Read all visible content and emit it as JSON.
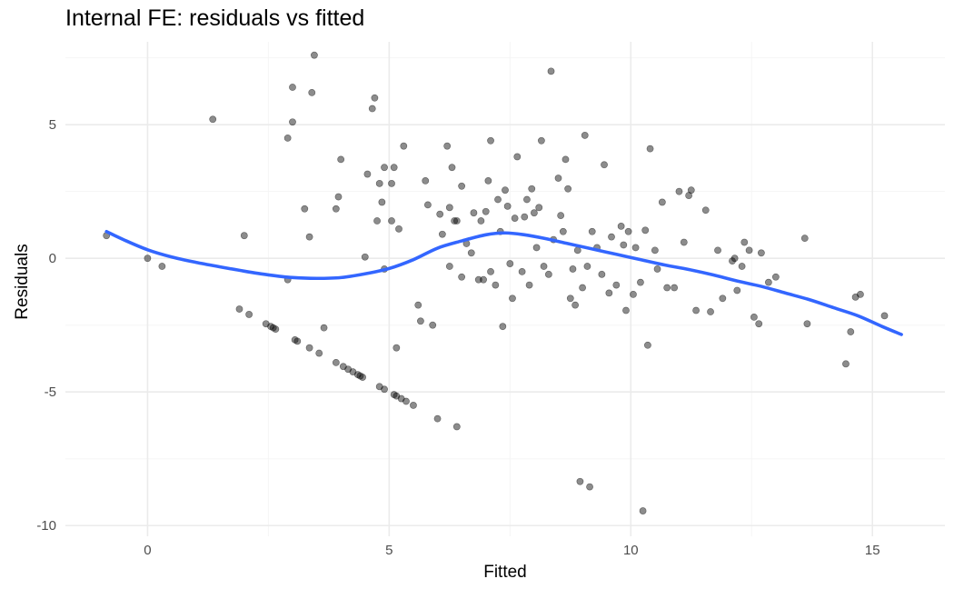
{
  "chart_data": {
    "type": "scatter",
    "title": "Internal FE: residuals vs fitted",
    "xlabel": "Fitted",
    "ylabel": "Residuals",
    "xlim": [
      -1.7,
      16.5
    ],
    "ylim": [
      -10.4,
      8.1
    ],
    "x_ticks": [
      0,
      5,
      10,
      15
    ],
    "y_ticks": [
      -10,
      -5,
      0,
      5
    ],
    "grid": true,
    "colors": {
      "points": "#000000",
      "smooth": "#3366ff",
      "grid_major": "#ebebeb",
      "grid_minor": "#f5f5f5"
    },
    "series": [
      {
        "kind": "points",
        "points": [
          [
            -0.85,
            0.85
          ],
          [
            0.0,
            0.0
          ],
          [
            0.3,
            -0.3
          ],
          [
            1.35,
            5.2
          ],
          [
            1.9,
            -1.9
          ],
          [
            2.0,
            0.85
          ],
          [
            2.1,
            -2.1
          ],
          [
            2.45,
            -2.45
          ],
          [
            2.55,
            -2.55
          ],
          [
            2.6,
            -2.6
          ],
          [
            2.65,
            -2.65
          ],
          [
            2.9,
            -0.8
          ],
          [
            2.9,
            4.5
          ],
          [
            3.0,
            6.4
          ],
          [
            3.0,
            5.1
          ],
          [
            3.05,
            -3.05
          ],
          [
            3.1,
            -3.1
          ],
          [
            3.25,
            1.85
          ],
          [
            3.35,
            0.8
          ],
          [
            3.35,
            -3.35
          ],
          [
            3.4,
            6.2
          ],
          [
            3.45,
            7.6
          ],
          [
            3.55,
            -3.55
          ],
          [
            3.65,
            -2.6
          ],
          [
            3.9,
            1.85
          ],
          [
            3.9,
            -3.9
          ],
          [
            3.95,
            2.3
          ],
          [
            4.0,
            3.7
          ],
          [
            4.05,
            -4.05
          ],
          [
            4.15,
            -4.15
          ],
          [
            4.25,
            -4.25
          ],
          [
            4.35,
            -4.35
          ],
          [
            4.4,
            -4.4
          ],
          [
            4.45,
            -4.45
          ],
          [
            4.5,
            0.05
          ],
          [
            4.55,
            3.15
          ],
          [
            4.65,
            5.6
          ],
          [
            4.7,
            6.0
          ],
          [
            4.75,
            1.4
          ],
          [
            4.8,
            2.8
          ],
          [
            4.8,
            -4.8
          ],
          [
            4.85,
            2.1
          ],
          [
            4.9,
            3.4
          ],
          [
            4.9,
            -4.9
          ],
          [
            4.9,
            -0.4
          ],
          [
            5.05,
            1.4
          ],
          [
            5.05,
            2.8
          ],
          [
            5.1,
            3.4
          ],
          [
            5.1,
            -5.1
          ],
          [
            5.15,
            -5.15
          ],
          [
            5.15,
            -3.35
          ],
          [
            5.2,
            1.1
          ],
          [
            5.25,
            -5.25
          ],
          [
            5.3,
            4.2
          ],
          [
            5.35,
            -5.35
          ],
          [
            5.5,
            -5.5
          ],
          [
            5.6,
            -1.75
          ],
          [
            5.65,
            -2.35
          ],
          [
            5.75,
            2.9
          ],
          [
            5.8,
            2.0
          ],
          [
            5.9,
            -2.5
          ],
          [
            6.05,
            1.65
          ],
          [
            6.0,
            -6.0
          ],
          [
            6.1,
            0.9
          ],
          [
            6.2,
            4.2
          ],
          [
            6.25,
            -0.3
          ],
          [
            6.25,
            1.9
          ],
          [
            6.3,
            3.4
          ],
          [
            6.35,
            1.4
          ],
          [
            6.4,
            1.4
          ],
          [
            6.4,
            -6.3
          ],
          [
            6.5,
            2.7
          ],
          [
            6.5,
            -0.7
          ],
          [
            6.6,
            0.55
          ],
          [
            6.7,
            0.2
          ],
          [
            6.75,
            1.7
          ],
          [
            6.85,
            -0.8
          ],
          [
            6.9,
            1.4
          ],
          [
            6.95,
            -0.8
          ],
          [
            7.0,
            1.75
          ],
          [
            7.05,
            2.9
          ],
          [
            7.1,
            -0.5
          ],
          [
            7.1,
            4.4
          ],
          [
            7.2,
            -1.0
          ],
          [
            7.25,
            2.2
          ],
          [
            7.3,
            1.0
          ],
          [
            7.35,
            -2.55
          ],
          [
            7.4,
            2.55
          ],
          [
            7.45,
            1.95
          ],
          [
            7.5,
            -0.2
          ],
          [
            7.55,
            -1.5
          ],
          [
            7.6,
            1.5
          ],
          [
            7.65,
            3.8
          ],
          [
            7.75,
            -0.5
          ],
          [
            7.8,
            1.55
          ],
          [
            7.85,
            2.2
          ],
          [
            7.9,
            -1.0
          ],
          [
            7.95,
            2.6
          ],
          [
            8.0,
            1.7
          ],
          [
            8.05,
            0.4
          ],
          [
            8.1,
            1.9
          ],
          [
            8.15,
            4.4
          ],
          [
            8.2,
            -0.3
          ],
          [
            8.3,
            -0.6
          ],
          [
            8.35,
            7.0
          ],
          [
            8.4,
            0.7
          ],
          [
            8.5,
            3.0
          ],
          [
            8.55,
            1.6
          ],
          [
            8.6,
            1.0
          ],
          [
            8.65,
            3.7
          ],
          [
            8.7,
            2.6
          ],
          [
            8.75,
            -1.5
          ],
          [
            8.8,
            -0.4
          ],
          [
            8.85,
            -1.75
          ],
          [
            8.9,
            0.3
          ],
          [
            8.95,
            -8.35
          ],
          [
            9.0,
            -1.1
          ],
          [
            9.05,
            4.6
          ],
          [
            9.1,
            -0.3
          ],
          [
            9.15,
            -8.55
          ],
          [
            9.2,
            1.0
          ],
          [
            9.3,
            0.4
          ],
          [
            9.4,
            -0.6
          ],
          [
            9.45,
            3.5
          ],
          [
            9.55,
            -1.3
          ],
          [
            9.6,
            0.8
          ],
          [
            9.7,
            -1.0
          ],
          [
            9.8,
            1.2
          ],
          [
            9.85,
            0.5
          ],
          [
            9.9,
            -1.95
          ],
          [
            9.95,
            1.0
          ],
          [
            10.05,
            -1.35
          ],
          [
            10.1,
            0.4
          ],
          [
            10.2,
            -0.9
          ],
          [
            10.25,
            -9.45
          ],
          [
            10.3,
            1.05
          ],
          [
            10.35,
            -3.25
          ],
          [
            10.4,
            4.1
          ],
          [
            10.5,
            0.3
          ],
          [
            10.55,
            -0.4
          ],
          [
            10.65,
            2.1
          ],
          [
            10.75,
            -1.1
          ],
          [
            10.9,
            -1.1
          ],
          [
            11.0,
            2.5
          ],
          [
            11.1,
            0.6
          ],
          [
            11.2,
            2.35
          ],
          [
            11.25,
            2.55
          ],
          [
            11.35,
            -1.95
          ],
          [
            11.55,
            1.8
          ],
          [
            11.65,
            -2.0
          ],
          [
            11.8,
            0.3
          ],
          [
            11.9,
            -1.5
          ],
          [
            12.1,
            -0.1
          ],
          [
            12.15,
            0.0
          ],
          [
            12.2,
            -1.2
          ],
          [
            12.3,
            -0.3
          ],
          [
            12.35,
            0.6
          ],
          [
            12.45,
            0.3
          ],
          [
            12.55,
            -2.2
          ],
          [
            12.65,
            -2.45
          ],
          [
            12.7,
            0.2
          ],
          [
            12.85,
            -0.9
          ],
          [
            13.0,
            -0.7
          ],
          [
            13.6,
            0.75
          ],
          [
            13.65,
            -2.45
          ],
          [
            14.45,
            -3.95
          ],
          [
            14.55,
            -2.75
          ],
          [
            14.65,
            -1.45
          ],
          [
            14.75,
            -1.35
          ],
          [
            15.25,
            -2.15
          ]
        ]
      },
      {
        "kind": "smooth",
        "points": [
          [
            -0.85,
            1.0
          ],
          [
            -0.5,
            0.7
          ],
          [
            0.0,
            0.32
          ],
          [
            0.5,
            0.05
          ],
          [
            1.0,
            -0.15
          ],
          [
            1.5,
            -0.32
          ],
          [
            2.0,
            -0.48
          ],
          [
            2.5,
            -0.62
          ],
          [
            3.0,
            -0.72
          ],
          [
            3.5,
            -0.75
          ],
          [
            4.0,
            -0.72
          ],
          [
            4.5,
            -0.58
          ],
          [
            5.0,
            -0.38
          ],
          [
            5.5,
            -0.05
          ],
          [
            6.0,
            0.38
          ],
          [
            6.5,
            0.65
          ],
          [
            7.0,
            0.88
          ],
          [
            7.4,
            0.95
          ],
          [
            7.8,
            0.88
          ],
          [
            8.2,
            0.75
          ],
          [
            8.7,
            0.55
          ],
          [
            9.2,
            0.35
          ],
          [
            9.7,
            0.15
          ],
          [
            10.2,
            -0.05
          ],
          [
            10.7,
            -0.25
          ],
          [
            11.2,
            -0.42
          ],
          [
            11.7,
            -0.62
          ],
          [
            12.2,
            -0.85
          ],
          [
            12.7,
            -1.05
          ],
          [
            13.2,
            -1.3
          ],
          [
            13.7,
            -1.55
          ],
          [
            14.2,
            -1.85
          ],
          [
            14.7,
            -2.15
          ],
          [
            15.2,
            -2.55
          ],
          [
            15.6,
            -2.85
          ]
        ]
      }
    ]
  }
}
